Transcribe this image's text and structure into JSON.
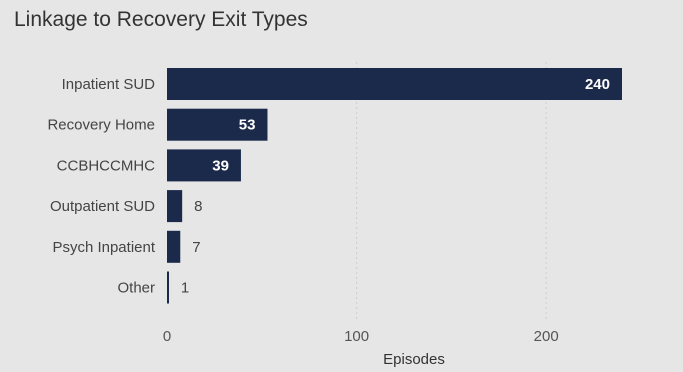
{
  "chart_data": {
    "type": "bar",
    "orientation": "horizontal",
    "title": "Linkage to Recovery Exit Types",
    "categories": [
      "Inpatient SUD",
      "Recovery Home",
      "CCBHCCMHC",
      "Outpatient SUD",
      "Psych Inpatient",
      "Other"
    ],
    "values": [
      240,
      53,
      39,
      8,
      7,
      1
    ],
    "xlabel": "Episodes",
    "ylabel": "",
    "xlim": [
      0,
      240
    ],
    "xticks": [
      0,
      100,
      200
    ],
    "grid": "vertical dotted",
    "bar_color": "#1b2a4a",
    "data_labels": [
      "240",
      "53",
      "39",
      "8",
      "7",
      "1"
    ],
    "tick_labels": [
      "0",
      "100",
      "200"
    ]
  }
}
